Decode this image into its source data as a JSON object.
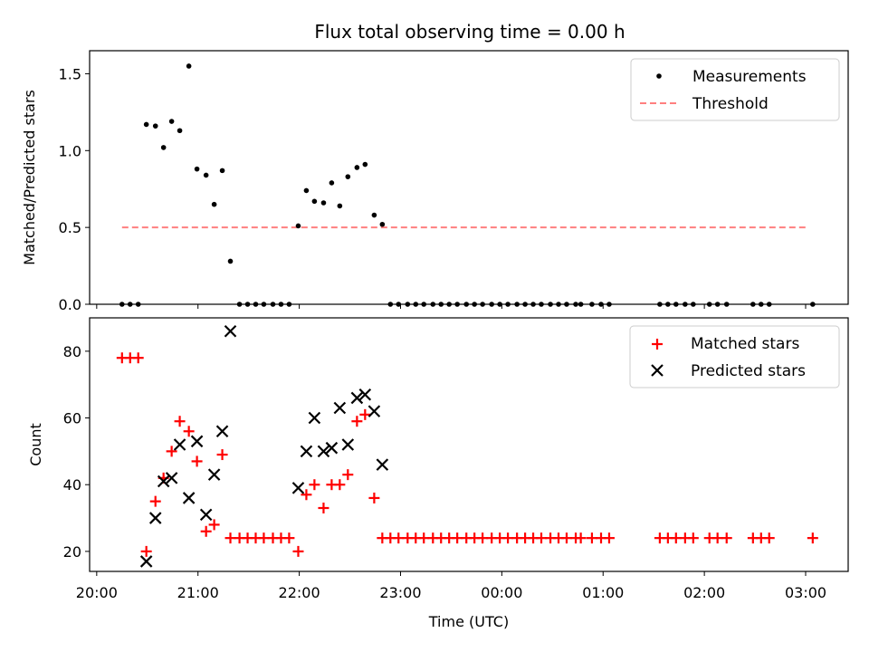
{
  "figure": {
    "title": "Flux total observing time = 0.00 h",
    "xlabel": "Time (UTC)",
    "colors": {
      "matched": "#ff0000",
      "predicted": "#000000",
      "threshold": "#ff7f7f",
      "measurement": "#000000"
    }
  },
  "chart_data": [
    {
      "type": "scatter",
      "ylabel": "Matched/Predicted stars",
      "ylim": [
        0,
        1.65
      ],
      "yticks": [
        0.0,
        0.5,
        1.0,
        1.5
      ],
      "ytick_labels": [
        "0.0",
        "0.5",
        "1.0",
        "1.5"
      ],
      "xlim": [
        19.93,
        27.42
      ],
      "legend_position": "top-right",
      "series": [
        {
          "name": "Measurements",
          "marker": "dot",
          "x": [
            20.25,
            20.33,
            20.41,
            20.49,
            20.58,
            20.66,
            20.74,
            20.82,
            20.91,
            20.99,
            21.08,
            21.16,
            21.24,
            21.32,
            21.41,
            21.49,
            21.57,
            21.65,
            21.74,
            21.82,
            21.9,
            21.99,
            22.07,
            22.15,
            22.24,
            22.32,
            22.4,
            22.48,
            22.57,
            22.65,
            22.74,
            22.82,
            22.9,
            22.98,
            23.07,
            23.15,
            23.23,
            23.32,
            23.4,
            23.48,
            23.56,
            23.65,
            23.73,
            23.81,
            23.9,
            23.98,
            24.06,
            24.15,
            24.23,
            24.31,
            24.39,
            24.48,
            24.56,
            24.64,
            24.73,
            24.78,
            24.89,
            24.98,
            25.06,
            25.56,
            25.64,
            25.72,
            25.81,
            25.89,
            26.05,
            26.13,
            26.22,
            26.48,
            26.56,
            26.64,
            27.07
          ],
          "y": [
            0,
            0,
            0,
            1.17,
            1.16,
            1.02,
            1.19,
            1.13,
            1.55,
            0.88,
            0.84,
            0.65,
            0.87,
            0.28,
            0,
            0,
            0,
            0,
            0,
            0,
            0,
            0.51,
            0.74,
            0.67,
            0.66,
            0.79,
            0.64,
            0.83,
            0.89,
            0.91,
            0.58,
            0.52,
            0,
            0,
            0,
            0,
            0,
            0,
            0,
            0,
            0,
            0,
            0,
            0,
            0,
            0,
            0,
            0,
            0,
            0,
            0,
            0,
            0,
            0,
            0,
            0,
            0,
            0,
            0,
            0,
            0,
            0,
            0,
            0,
            0,
            0,
            0,
            0,
            0,
            0,
            0
          ]
        },
        {
          "name": "Threshold",
          "marker": "dashed-line",
          "x": [
            20.25,
            27.03
          ],
          "y": [
            0.5,
            0.5
          ]
        }
      ]
    },
    {
      "type": "scatter",
      "ylabel": "Count",
      "ylim": [
        14,
        90
      ],
      "yticks": [
        20,
        40,
        60,
        80
      ],
      "ytick_labels": [
        "20",
        "40",
        "60",
        "80"
      ],
      "xlim": [
        19.93,
        27.42
      ],
      "xticks": [
        20,
        21,
        22,
        23,
        24,
        25,
        26,
        27
      ],
      "xtick_labels": [
        "20:00",
        "21:00",
        "22:00",
        "23:00",
        "00:00",
        "01:00",
        "02:00",
        "03:00"
      ],
      "legend_position": "top-right",
      "series": [
        {
          "name": "Matched stars",
          "marker": "plus",
          "x": [
            20.25,
            20.33,
            20.41,
            20.49,
            20.58,
            20.66,
            20.74,
            20.82,
            20.91,
            20.99,
            21.08,
            21.16,
            21.24,
            21.32,
            21.41,
            21.49,
            21.57,
            21.65,
            21.74,
            21.82,
            21.9,
            21.99,
            22.07,
            22.15,
            22.24,
            22.32,
            22.4,
            22.48,
            22.57,
            22.65,
            22.74,
            22.82,
            22.9,
            22.98,
            23.07,
            23.15,
            23.23,
            23.32,
            23.4,
            23.48,
            23.56,
            23.65,
            23.73,
            23.81,
            23.9,
            23.98,
            24.06,
            24.15,
            24.23,
            24.31,
            24.39,
            24.48,
            24.56,
            24.64,
            24.73,
            24.78,
            24.89,
            24.98,
            25.06,
            25.56,
            25.64,
            25.72,
            25.81,
            25.89,
            26.05,
            26.13,
            26.22,
            26.48,
            26.56,
            26.64,
            27.07
          ],
          "y": [
            78,
            78,
            78,
            20,
            35,
            42,
            50,
            59,
            56,
            47,
            26,
            28,
            49,
            24,
            24,
            24,
            24,
            24,
            24,
            24,
            24,
            20,
            37,
            40,
            33,
            40,
            40,
            43,
            59,
            61,
            36,
            24,
            24,
            24,
            24,
            24,
            24,
            24,
            24,
            24,
            24,
            24,
            24,
            24,
            24,
            24,
            24,
            24,
            24,
            24,
            24,
            24,
            24,
            24,
            24,
            24,
            24,
            24,
            24,
            24,
            24,
            24,
            24,
            24,
            24,
            24,
            24,
            24,
            24,
            24,
            24
          ]
        },
        {
          "name": "Predicted stars",
          "marker": "x",
          "x": [
            20.49,
            20.58,
            20.66,
            20.74,
            20.82,
            20.91,
            20.99,
            21.08,
            21.16,
            21.24,
            21.32,
            21.99,
            22.07,
            22.15,
            22.24,
            22.32,
            22.4,
            22.48,
            22.57,
            22.65,
            22.74,
            22.82
          ],
          "y": [
            17,
            30,
            41,
            42,
            52,
            36,
            53,
            31,
            43,
            56,
            86,
            39,
            50,
            60,
            50,
            51,
            63,
            52,
            66,
            67,
            62,
            46
          ]
        }
      ]
    }
  ]
}
